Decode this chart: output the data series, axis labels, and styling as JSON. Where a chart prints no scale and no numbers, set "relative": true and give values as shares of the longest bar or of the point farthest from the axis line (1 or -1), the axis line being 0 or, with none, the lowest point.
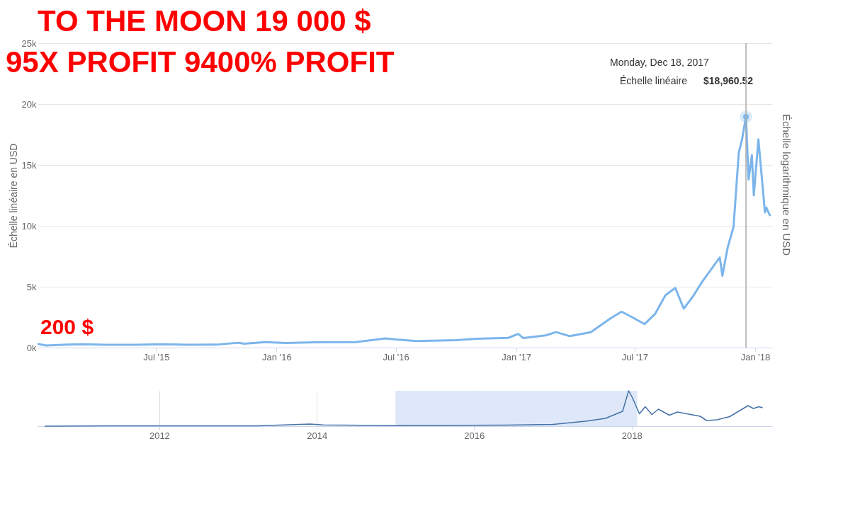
{
  "chart_data": [
    {
      "type": "line",
      "ylabel": "Échelle linéaire en USD",
      "y2label": "Échelle logarithmique en USD",
      "annotations": [
        "TO THE MOON 19 000 $",
        "95X PROFIT 9400% PROFIT",
        "200 $",
        "Monday, Dec 18, 2017"
      ],
      "x": [
        "2015-01-01",
        "2015-01-14",
        "2015-02-15",
        "2015-03-10",
        "2015-04-15",
        "2015-06-01",
        "2015-07-10",
        "2015-08-20",
        "2015-10-01",
        "2015-11-04",
        "2015-11-12",
        "2015-12-15",
        "2016-01-15",
        "2016-03-01",
        "2016-05-01",
        "2016-06-16",
        "2016-07-01",
        "2016-08-02",
        "2016-10-01",
        "2016-11-01",
        "2016-12-20",
        "2017-01-04",
        "2017-01-12",
        "2017-02-15",
        "2017-03-03",
        "2017-03-24",
        "2017-04-25",
        "2017-05-25",
        "2017-06-11",
        "2017-06-27",
        "2017-07-16",
        "2017-08-01",
        "2017-08-17",
        "2017-09-01",
        "2017-09-14",
        "2017-09-28",
        "2017-10-12",
        "2017-10-20",
        "2017-11-08",
        "2017-11-12",
        "2017-11-20",
        "2017-11-29",
        "2017-12-07",
        "2017-12-12",
        "2017-12-18",
        "2017-12-22",
        "2017-12-27",
        "2017-12-30",
        "2018-01-06",
        "2018-01-16",
        "2018-01-18",
        "2018-01-24"
      ],
      "series": [
        {
          "name": "Échelle linéaire",
          "color": "#7cb5ec",
          "values": [
            300,
            180,
            250,
            280,
            230,
            230,
            280,
            230,
            240,
            400,
            320,
            450,
            380,
            430,
            450,
            750,
            670,
            540,
            610,
            720,
            800,
            1130,
            780,
            1000,
            1270,
            940,
            1260,
            2400,
            2950,
            2500,
            1930,
            2750,
            4300,
            4900,
            3200,
            4200,
            5400,
            6000,
            7400,
            5900,
            8200,
            9900,
            16000,
            17100,
            18960.52,
            13800,
            15800,
            12500,
            17100,
            11100,
            11500,
            10800
          ],
          "value_labels": [
            null,
            null,
            null,
            null,
            null,
            null,
            null,
            null,
            null,
            null,
            null,
            null,
            null,
            null,
            null,
            null,
            null,
            null,
            null,
            null,
            null,
            null,
            null,
            null,
            null,
            null,
            null,
            null,
            null,
            null,
            null,
            null,
            null,
            null,
            null,
            null,
            null,
            null,
            null,
            null,
            null,
            null,
            null,
            null,
            "$18,960.52",
            null,
            null,
            null,
            null,
            null,
            null,
            null
          ]
        }
      ],
      "xlim": [
        "2015-01-01",
        "2018-01-27"
      ],
      "xticks": [
        {
          "value": "2015-07-01",
          "label": "Jul '15"
        },
        {
          "value": "2016-01-01",
          "label": "Jan '16"
        },
        {
          "value": "2016-07-01",
          "label": "Jul '16"
        },
        {
          "value": "2017-01-01",
          "label": "Jan '17"
        },
        {
          "value": "2017-07-01",
          "label": "Jul '17"
        },
        {
          "value": "2018-01-01",
          "label": "Jan '18"
        }
      ],
      "ylim": [
        0,
        25000
      ],
      "yticks": [
        {
          "value": 0,
          "label": "0k"
        },
        {
          "value": 5000,
          "label": "5k"
        },
        {
          "value": 10000,
          "label": "10k"
        },
        {
          "value": 15000,
          "label": "15k"
        },
        {
          "value": 20000,
          "label": "20k"
        },
        {
          "value": 25000,
          "label": "25k"
        }
      ],
      "ref_lines": [
        {
          "axis": "x",
          "value": "2017-12-18",
          "color": "#aaaaaa"
        }
      ],
      "grid": "y",
      "legend": false,
      "marker": "none",
      "line_style": "solid"
    },
    {
      "type": "line",
      "relative": true,
      "x": [
        "2010-07-18",
        "2011-06-01",
        "2013-04-01",
        "2013-12-01",
        "2014-02-01",
        "2015-01-01",
        "2016-06-01",
        "2017-01-01",
        "2017-06-01",
        "2017-09-01",
        "2017-11-20",
        "2017-12-18",
        "2018-01-05",
        "2018-02-06",
        "2018-03-05",
        "2018-04-05",
        "2018-05-05",
        "2018-06-25",
        "2018-08-01",
        "2018-11-15",
        "2018-12-15",
        "2019-02-01",
        "2019-04-01",
        "2019-06-25",
        "2019-07-20",
        "2019-08-15",
        "2019-09-01"
      ],
      "series": [
        {
          "color": "#4572a7",
          "values": [
            0,
            0.01,
            0.01,
            0.06,
            0.035,
            0.015,
            0.03,
            0.05,
            0.14,
            0.22,
            0.42,
            1,
            0.8,
            0.35,
            0.55,
            0.33,
            0.48,
            0.31,
            0.4,
            0.28,
            0.16,
            0.18,
            0.27,
            0.58,
            0.5,
            0.55,
            0.52
          ]
        }
      ],
      "xlim": [
        "2010-06-15",
        "2019-10-15"
      ],
      "xticks": [
        {
          "value": "2012-01-01",
          "label": "2012"
        },
        {
          "value": "2014-01-01",
          "label": "2014"
        },
        {
          "value": "2016-01-01",
          "label": "2016"
        },
        {
          "value": "2018-01-01",
          "label": "2018"
        }
      ],
      "bands": [
        {
          "axis": "x",
          "from": "2015-01-01",
          "to": "2018-01-27",
          "color": "#dae6f7"
        }
      ],
      "grid": "x",
      "legend": false,
      "marker": "none",
      "line_style": "solid",
      "tick_labels": "x"
    }
  ]
}
